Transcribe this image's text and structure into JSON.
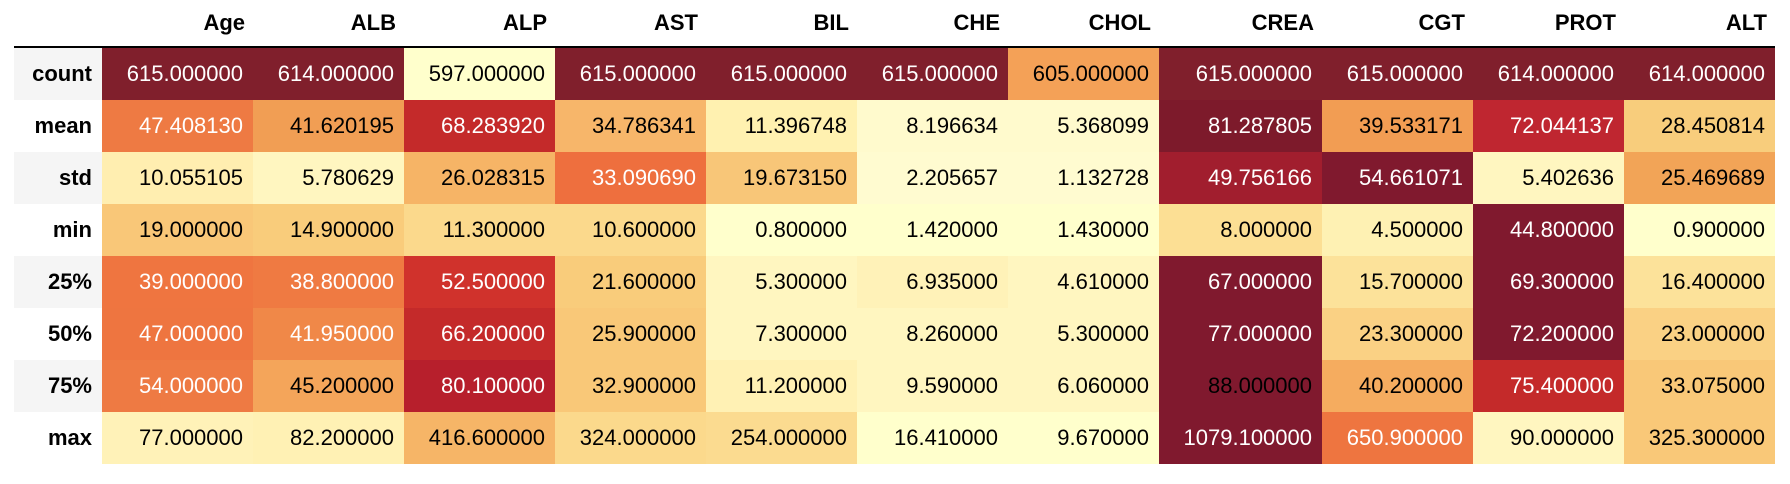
{
  "table": {
    "columns": [
      "Age",
      "ALB",
      "ALP",
      "AST",
      "BIL",
      "CHE",
      "CHOL",
      "CREA",
      "CGT",
      "PROT",
      "ALT"
    ],
    "rows": [
      {
        "label": "count",
        "cells": [
          {
            "v": "615.000000",
            "bg": "#801f2c",
            "fg": "#ffffff"
          },
          {
            "v": "614.000000",
            "bg": "#801f2c",
            "fg": "#ffffff"
          },
          {
            "v": "597.000000",
            "bg": "#ffffcc",
            "fg": "#000000"
          },
          {
            "v": "615.000000",
            "bg": "#801f2c",
            "fg": "#ffffff"
          },
          {
            "v": "615.000000",
            "bg": "#801f2c",
            "fg": "#ffffff"
          },
          {
            "v": "615.000000",
            "bg": "#801f2c",
            "fg": "#ffffff"
          },
          {
            "v": "605.000000",
            "bg": "#f4a157",
            "fg": "#000000"
          },
          {
            "v": "615.000000",
            "bg": "#801f2c",
            "fg": "#ffffff"
          },
          {
            "v": "615.000000",
            "bg": "#801f2c",
            "fg": "#ffffff"
          },
          {
            "v": "614.000000",
            "bg": "#801f2c",
            "fg": "#ffffff"
          },
          {
            "v": "614.000000",
            "bg": "#801f2c",
            "fg": "#ffffff"
          }
        ]
      },
      {
        "label": "mean",
        "cells": [
          {
            "v": "47.408130",
            "bg": "#ee7a43",
            "fg": "#ffffff"
          },
          {
            "v": "41.620195",
            "bg": "#f19e54",
            "fg": "#000000"
          },
          {
            "v": "68.283920",
            "bg": "#c42a2a",
            "fg": "#ffffff"
          },
          {
            "v": "34.786341",
            "bg": "#f7b66a",
            "fg": "#000000"
          },
          {
            "v": "11.396748",
            "bg": "#fff1b0",
            "fg": "#000000"
          },
          {
            "v": "8.196634",
            "bg": "#fffacd",
            "fg": "#000000"
          },
          {
            "v": "5.368099",
            "bg": "#fffacd",
            "fg": "#000000"
          },
          {
            "v": "81.287805",
            "bg": "#7d1a2b",
            "fg": "#ffffff"
          },
          {
            "v": "39.533171",
            "bg": "#f29d53",
            "fg": "#000000"
          },
          {
            "v": "72.044137",
            "bg": "#bf2630",
            "fg": "#ffffff"
          },
          {
            "v": "28.450814",
            "bg": "#f8cd7c",
            "fg": "#000000"
          }
        ]
      },
      {
        "label": "std",
        "cells": [
          {
            "v": "10.055105",
            "bg": "#ffeeb0",
            "fg": "#000000"
          },
          {
            "v": "5.780629",
            "bg": "#fff6c0",
            "fg": "#000000"
          },
          {
            "v": "26.028315",
            "bg": "#f6b466",
            "fg": "#000000"
          },
          {
            "v": "33.090690",
            "bg": "#ee6f3e",
            "fg": "#ffffff"
          },
          {
            "v": "19.673150",
            "bg": "#f8c678",
            "fg": "#000000"
          },
          {
            "v": "2.205657",
            "bg": "#fffbd0",
            "fg": "#000000"
          },
          {
            "v": "1.132728",
            "bg": "#fffbd0",
            "fg": "#000000"
          },
          {
            "v": "49.756166",
            "bg": "#a11e2e",
            "fg": "#ffffff"
          },
          {
            "v": "54.661071",
            "bg": "#80192e",
            "fg": "#ffffff"
          },
          {
            "v": "5.402636",
            "bg": "#fff6c0",
            "fg": "#000000"
          },
          {
            "v": "25.469689",
            "bg": "#f2a457",
            "fg": "#000000"
          }
        ]
      },
      {
        "label": "min",
        "cells": [
          {
            "v": "19.000000",
            "bg": "#f9c778",
            "fg": "#000000"
          },
          {
            "v": "14.900000",
            "bg": "#f9cc7b",
            "fg": "#000000"
          },
          {
            "v": "11.300000",
            "bg": "#fbd98c",
            "fg": "#000000"
          },
          {
            "v": "10.600000",
            "bg": "#fbd98c",
            "fg": "#000000"
          },
          {
            "v": "0.800000",
            "bg": "#ffffcc",
            "fg": "#000000"
          },
          {
            "v": "1.420000",
            "bg": "#ffffcc",
            "fg": "#000000"
          },
          {
            "v": "1.430000",
            "bg": "#ffffcc",
            "fg": "#000000"
          },
          {
            "v": "8.000000",
            "bg": "#fcdf94",
            "fg": "#000000"
          },
          {
            "v": "4.500000",
            "bg": "#fef1b3",
            "fg": "#000000"
          },
          {
            "v": "44.800000",
            "bg": "#80192e",
            "fg": "#ffffff"
          },
          {
            "v": "0.900000",
            "bg": "#ffffcc",
            "fg": "#000000"
          }
        ]
      },
      {
        "label": "25%",
        "cells": [
          {
            "v": "39.000000",
            "bg": "#ef7540",
            "fg": "#ffffff"
          },
          {
            "v": "38.800000",
            "bg": "#ef7a42",
            "fg": "#ffffff"
          },
          {
            "v": "52.500000",
            "bg": "#d0322c",
            "fg": "#ffffff"
          },
          {
            "v": "21.600000",
            "bg": "#f9cc7b",
            "fg": "#000000"
          },
          {
            "v": "5.300000",
            "bg": "#fff6c0",
            "fg": "#000000"
          },
          {
            "v": "6.935000",
            "bg": "#fff2b8",
            "fg": "#000000"
          },
          {
            "v": "4.610000",
            "bg": "#fff6c0",
            "fg": "#000000"
          },
          {
            "v": "67.000000",
            "bg": "#80192e",
            "fg": "#ffffff"
          },
          {
            "v": "15.700000",
            "bg": "#fce29a",
            "fg": "#000000"
          },
          {
            "v": "69.300000",
            "bg": "#80192e",
            "fg": "#ffffff"
          },
          {
            "v": "16.400000",
            "bg": "#fce29a",
            "fg": "#000000"
          }
        ]
      },
      {
        "label": "50%",
        "cells": [
          {
            "v": "47.000000",
            "bg": "#ee7540",
            "fg": "#ffffff"
          },
          {
            "v": "41.950000",
            "bg": "#f08848",
            "fg": "#ffffff"
          },
          {
            "v": "66.200000",
            "bg": "#c42a2a",
            "fg": "#ffffff"
          },
          {
            "v": "25.900000",
            "bg": "#f9c878",
            "fg": "#000000"
          },
          {
            "v": "7.300000",
            "bg": "#fff6c0",
            "fg": "#000000"
          },
          {
            "v": "8.260000",
            "bg": "#fff6c0",
            "fg": "#000000"
          },
          {
            "v": "5.300000",
            "bg": "#fff6c0",
            "fg": "#000000"
          },
          {
            "v": "77.000000",
            "bg": "#80192e",
            "fg": "#ffffff"
          },
          {
            "v": "23.300000",
            "bg": "#fad184",
            "fg": "#000000"
          },
          {
            "v": "72.200000",
            "bg": "#80192e",
            "fg": "#ffffff"
          },
          {
            "v": "23.000000",
            "bg": "#fad184",
            "fg": "#000000"
          }
        ]
      },
      {
        "label": "75%",
        "cells": [
          {
            "v": "54.000000",
            "bg": "#ee7a43",
            "fg": "#ffffff"
          },
          {
            "v": "45.200000",
            "bg": "#f4a55a",
            "fg": "#000000"
          },
          {
            "v": "80.100000",
            "bg": "#b71f2c",
            "fg": "#ffffff"
          },
          {
            "v": "32.900000",
            "bg": "#f9c878",
            "fg": "#000000"
          },
          {
            "v": "11.200000",
            "bg": "#fff1b4",
            "fg": "#000000"
          },
          {
            "v": "9.590000",
            "bg": "#fff6c0",
            "fg": "#000000"
          },
          {
            "v": "6.060000",
            "bg": "#fff6c0",
            "fg": "#000000"
          },
          {
            "v": "88.000000",
            "bg": "#80192e",
            "fg": "#000000"
          },
          {
            "v": "40.200000",
            "bg": "#f5ac5f",
            "fg": "#000000"
          },
          {
            "v": "75.400000",
            "bg": "#c42a2a",
            "fg": "#ffffff"
          },
          {
            "v": "33.075000",
            "bg": "#f9c878",
            "fg": "#000000"
          }
        ]
      },
      {
        "label": "max",
        "cells": [
          {
            "v": "77.000000",
            "bg": "#fff2b8",
            "fg": "#000000"
          },
          {
            "v": "82.200000",
            "bg": "#fff1b4",
            "fg": "#000000"
          },
          {
            "v": "416.600000",
            "bg": "#f6b567",
            "fg": "#000000"
          },
          {
            "v": "324.000000",
            "bg": "#fbd98c",
            "fg": "#000000"
          },
          {
            "v": "254.000000",
            "bg": "#fbdb90",
            "fg": "#000000"
          },
          {
            "v": "16.410000",
            "bg": "#ffffcc",
            "fg": "#000000"
          },
          {
            "v": "9.670000",
            "bg": "#ffffcc",
            "fg": "#000000"
          },
          {
            "v": "1079.100000",
            "bg": "#80192e",
            "fg": "#ffffff"
          },
          {
            "v": "650.900000",
            "bg": "#ee7540",
            "fg": "#ffffff"
          },
          {
            "v": "90.000000",
            "bg": "#fff6c0",
            "fg": "#000000"
          },
          {
            "v": "325.300000",
            "bg": "#f9c878",
            "fg": "#000000"
          }
        ]
      }
    ]
  }
}
